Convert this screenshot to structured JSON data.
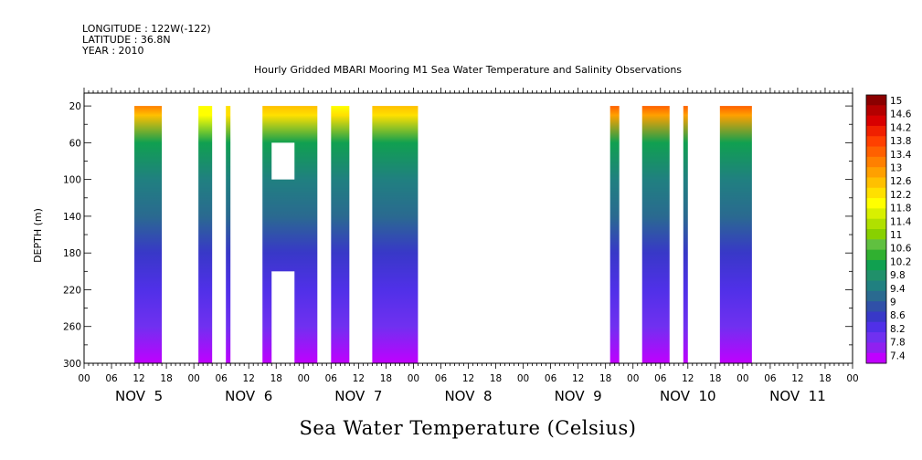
{
  "header": {
    "longitude": "LONGITUDE : 122W(-122)",
    "latitude": "LATITUDE : 36.8N",
    "year": "YEAR : 2010",
    "title": "Hourly Gridded MBARI Mooring M1 Sea Water Temperature and Salinity Observations",
    "bottom_title": "Sea Water Temperature (Celsius)"
  },
  "chart_data": {
    "type": "heatmap",
    "title": "Hourly Gridded MBARI Mooring M1 Sea Water Temperature and Salinity Observations",
    "xlabel": "",
    "ylabel": "DEPTH (m)",
    "x_hour_ticks": [
      "00",
      "06",
      "12",
      "18",
      "00",
      "06",
      "12",
      "18",
      "00",
      "06",
      "12",
      "18",
      "00",
      "06",
      "12",
      "18",
      "00",
      "06",
      "12",
      "18",
      "00",
      "06",
      "12",
      "18",
      "00",
      "06",
      "12",
      "18",
      "00"
    ],
    "x_day_labels": [
      "NOV 5",
      "NOV 6",
      "NOV 7",
      "NOV 8",
      "NOV 9",
      "NOV 10",
      "NOV 11"
    ],
    "xlim_hours_from_nov5_00": [
      0,
      168
    ],
    "ylim": [
      300,
      6
    ],
    "y_ticks": [
      "20",
      "60",
      "100",
      "140",
      "180",
      "220",
      "260",
      "300"
    ],
    "y_reversed": true,
    "grid": false,
    "colorbar": {
      "levels": [
        "15",
        "14.6",
        "14.2",
        "13.8",
        "13.4",
        "13",
        "12.6",
        "12.2",
        "11.8",
        "11.4",
        "11",
        "10.6",
        "10.2",
        "9.8",
        "9.4",
        "9",
        "8.6",
        "8.2",
        "7.8",
        "7.4"
      ],
      "colors": [
        "#8b0000",
        "#b40000",
        "#d80000",
        "#f02000",
        "#ff4000",
        "#ff6000",
        "#ff8000",
        "#ffa000",
        "#ffc000",
        "#ffe000",
        "#ffff00",
        "#d8f000",
        "#b0e000",
        "#88d000",
        "#60c040",
        "#30b030",
        "#10a050",
        "#20906a",
        "#208080",
        "#2a6a90",
        "#3050a8",
        "#3838c8",
        "#5030e8",
        "#7030f0",
        "#9020f0",
        "#c000ff"
      ]
    },
    "data_blocks": [
      {
        "start_hour": 11,
        "end_hour": 17,
        "top_temp": 13.2,
        "profile": "warm-top"
      },
      {
        "start_hour": 25,
        "end_hour": 28,
        "top_temp": 12.0,
        "profile": "normal"
      },
      {
        "start_hour": 31,
        "end_hour": 32,
        "top_temp": 12.2,
        "profile": "normal"
      },
      {
        "start_hour": 39,
        "end_hour": 51,
        "top_temp": 12.5,
        "profile": "warm-top",
        "missing": [
          {
            "start_hour": 41,
            "end_hour": 46,
            "depth_top": 60,
            "depth_bottom": 100
          },
          {
            "start_hour": 41,
            "end_hour": 46,
            "depth_top": 200,
            "depth_bottom": 300
          }
        ]
      },
      {
        "start_hour": 54,
        "end_hour": 58,
        "top_temp": 12.1,
        "profile": "normal"
      },
      {
        "start_hour": 63,
        "end_hour": 73,
        "top_temp": 12.5,
        "profile": "warm-top"
      },
      {
        "start_hour": 115,
        "end_hour": 117,
        "top_temp": 13.4,
        "profile": "hot-top"
      },
      {
        "start_hour": 122,
        "end_hour": 128,
        "top_temp": 13.5,
        "profile": "hot-top"
      },
      {
        "start_hour": 131,
        "end_hour": 132,
        "top_temp": 13.6,
        "profile": "hot-top"
      },
      {
        "start_hour": 139,
        "end_hour": 146,
        "top_temp": 13.6,
        "profile": "hot-top"
      }
    ],
    "depth_profile_temps": {
      "20": 12.2,
      "60": 10.0,
      "100": 9.6,
      "140": 9.2,
      "180": 8.7,
      "220": 8.3,
      "260": 7.9,
      "300": 7.5
    }
  }
}
